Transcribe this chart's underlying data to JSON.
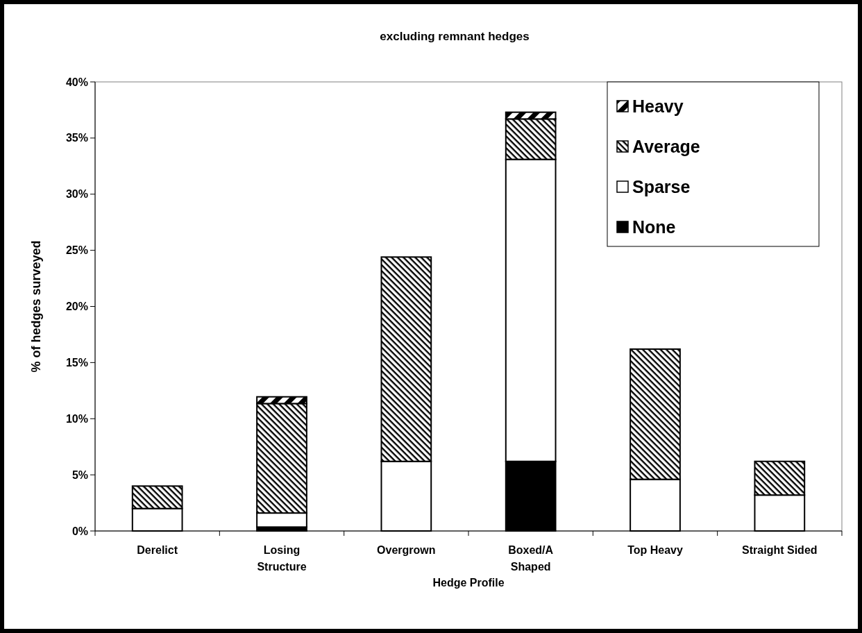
{
  "chart_data": {
    "type": "bar",
    "stacked": true,
    "title": "excluding remnant hedges",
    "xlabel": "Hedge Profile",
    "ylabel": "% of hedges surveyed",
    "categories": [
      "Derelict",
      "Losing\nStructure",
      "Overgrown",
      "Boxed/A\nShaped",
      "Top Heavy",
      "Straight Sided"
    ],
    "series": [
      {
        "name": "None",
        "color": "#000000",
        "values": [
          0,
          0.35,
          0,
          6.2,
          0,
          0
        ]
      },
      {
        "name": "Sparse",
        "color": "#ffffff",
        "values": [
          2.0,
          1.25,
          6.2,
          26.9,
          4.6,
          3.2
        ]
      },
      {
        "name": "Average",
        "color": "#000000",
        "values": [
          2.0,
          9.75,
          18.2,
          3.6,
          11.6,
          3.0
        ]
      },
      {
        "name": "Heavy",
        "color": "#000000",
        "values": [
          0,
          0.6,
          0,
          0.6,
          0,
          0
        ]
      }
    ],
    "ylim": [
      0,
      40
    ],
    "yticks": [
      {
        "value": 0,
        "label": "0%"
      },
      {
        "value": 5,
        "label": "5%"
      },
      {
        "value": 10,
        "label": "10%"
      },
      {
        "value": 15,
        "label": "15%"
      },
      {
        "value": 20,
        "label": "20%"
      },
      {
        "value": 25,
        "label": "25%"
      },
      {
        "value": 30,
        "label": "30%"
      },
      {
        "value": 35,
        "label": "35%"
      },
      {
        "value": 40,
        "label": "40%"
      }
    ],
    "grid": false,
    "legend": "top right"
  }
}
